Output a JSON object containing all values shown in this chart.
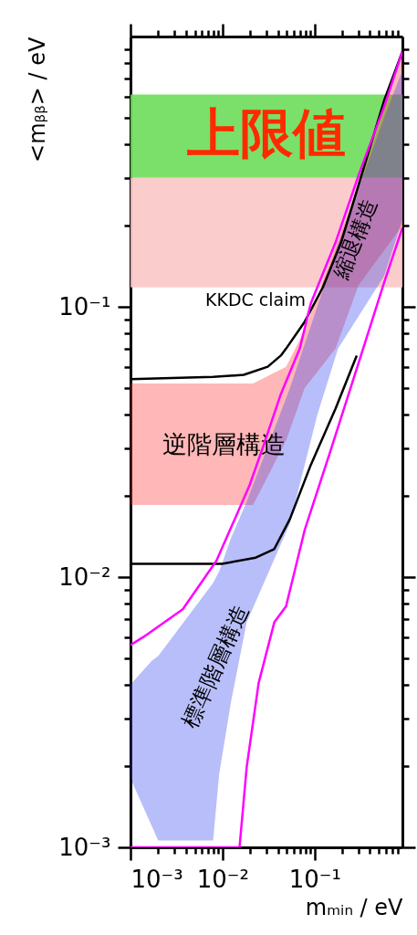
{
  "chart_data": {
    "type": "line",
    "xlabel": "mₘᵢₙ / eV",
    "ylabel": "<mᵦᵦ> / eV",
    "log": "xy",
    "grid": false,
    "xlim": [
      0.001,
      0.9
    ],
    "ylim": [
      0.001,
      1
    ],
    "xticks": [
      {
        "value": 0.001,
        "label": "10⁻³"
      },
      {
        "value": 0.002,
        "label": null
      },
      {
        "value": 0.003,
        "label": null
      },
      {
        "value": 0.004,
        "label": null
      },
      {
        "value": 0.005,
        "label": null
      },
      {
        "value": 0.006,
        "label": null
      },
      {
        "value": 0.007,
        "label": null
      },
      {
        "value": 0.008,
        "label": null
      },
      {
        "value": 0.009,
        "label": null
      },
      {
        "value": 0.01,
        "label": "10⁻²"
      },
      {
        "value": 0.02,
        "label": null
      },
      {
        "value": 0.03,
        "label": null
      },
      {
        "value": 0.04,
        "label": null
      },
      {
        "value": 0.05,
        "label": null
      },
      {
        "value": 0.06,
        "label": null
      },
      {
        "value": 0.07,
        "label": null
      },
      {
        "value": 0.08,
        "label": null
      },
      {
        "value": 0.09,
        "label": null
      },
      {
        "value": 0.1,
        "label": "10⁻¹"
      },
      {
        "value": 0.2,
        "label": null
      },
      {
        "value": 0.3,
        "label": null
      },
      {
        "value": 0.4,
        "label": null
      },
      {
        "value": 0.5,
        "label": null
      },
      {
        "value": 0.6,
        "label": null
      },
      {
        "value": 0.7,
        "label": null
      },
      {
        "value": 0.8,
        "label": null
      }
    ],
    "yticks": [
      {
        "value": 0.001,
        "label": "10⁻³"
      },
      {
        "value": 0.002,
        "label": null
      },
      {
        "value": 0.003,
        "label": null
      },
      {
        "value": 0.004,
        "label": null
      },
      {
        "value": 0.005,
        "label": null
      },
      {
        "value": 0.006,
        "label": null
      },
      {
        "value": 0.007,
        "label": null
      },
      {
        "value": 0.008,
        "label": null
      },
      {
        "value": 0.009,
        "label": null
      },
      {
        "value": 0.01,
        "label": "10⁻²"
      },
      {
        "value": 0.02,
        "label": null
      },
      {
        "value": 0.03,
        "label": null
      },
      {
        "value": 0.04,
        "label": null
      },
      {
        "value": 0.05,
        "label": null
      },
      {
        "value": 0.06,
        "label": null
      },
      {
        "value": 0.07,
        "label": null
      },
      {
        "value": 0.08,
        "label": null
      },
      {
        "value": 0.09,
        "label": null
      },
      {
        "value": 0.1,
        "label": "10⁻¹"
      },
      {
        "value": 0.2,
        "label": null
      },
      {
        "value": 0.3,
        "label": null
      },
      {
        "value": 0.4,
        "label": null
      },
      {
        "value": 0.5,
        "label": null
      },
      {
        "value": 0.6,
        "label": null
      },
      {
        "value": 0.7,
        "label": null
      },
      {
        "value": 0.8,
        "label": null
      },
      {
        "value": 0.9,
        "label": null
      }
    ],
    "bands": [
      {
        "axis": "y",
        "from": 0.3,
        "to": 0.61,
        "color": "#6ddd5a",
        "label": "上限値"
      },
      {
        "axis": "y",
        "from": 0.118,
        "to": 0.3,
        "color": "#f9c6c6",
        "label": "KKDC claim"
      }
    ],
    "series": [
      {
        "type": "area",
        "color": "#ff3030",
        "x": [
          0.001,
          0.0215,
          0.049,
          0.078,
          0.169,
          0.3,
          0.9
        ],
        "values": [
          null,
          null,
          null,
          null,
          null,
          null,
          null
        ],
        "upper": [
          0.052,
          0.052,
          0.06,
          0.082,
          0.165,
          0.28,
          0.85
        ],
        "lower": [
          0.0185,
          0.0185,
          0.032,
          0.05,
          0.07,
          0.12,
          0.2
        ]
      },
      {
        "type": "area",
        "color": "#3344ee",
        "x": [
          0.001,
          0.0017,
          0.002,
          0.0079,
          0.0092,
          0.0124,
          0.0183,
          0.054,
          0.107,
          0.18,
          0.57,
          0.9
        ],
        "values": [
          null,
          null,
          null,
          null,
          null,
          null,
          null,
          null,
          null,
          null,
          null,
          null
        ],
        "upper": [
          0.004,
          0.0049,
          0.0051,
          0.0095,
          0.0105,
          0.014,
          0.019,
          0.05,
          0.1,
          0.17,
          0.5,
          0.75
        ],
        "lower": [
          0.0018,
          0.0012,
          0.00106,
          0.00106,
          0.00187,
          0.00347,
          0.0068,
          0.0158,
          0.0398,
          0.07,
          0.13,
          0.21
        ]
      },
      {
        "type": "line",
        "color": "#000000",
        "x": [
          0.001,
          0.0079,
          0.017,
          0.031,
          0.043,
          0.049,
          0.078,
          0.123,
          0.194,
          0.287,
          0.57,
          0.9
        ],
        "values": [
          0.054,
          0.055,
          0.056,
          0.06,
          0.066,
          0.07,
          0.088,
          0.118,
          0.173,
          0.268,
          0.58,
          0.88
        ]
      },
      {
        "type": "line",
        "color": "#000000",
        "x": [
          0.001,
          0.0099,
          0.023,
          0.0365,
          0.054,
          0.091,
          0.169,
          0.287
        ],
        "values": [
          0.0112,
          0.0112,
          0.0118,
          0.0127,
          0.0164,
          0.026,
          0.042,
          0.066
        ]
      },
      {
        "type": "line",
        "color": "#ff00ff",
        "x": [
          0.001,
          0.00138,
          0.0037,
          0.0086,
          0.0136,
          0.0197,
          0.0271,
          0.043,
          0.069,
          0.091,
          0.169,
          0.307,
          0.57,
          0.9
        ],
        "values": [
          0.0056,
          0.006,
          0.0076,
          0.0115,
          0.0164,
          0.0219,
          0.0298,
          0.0475,
          0.07,
          0.103,
          0.173,
          0.313,
          0.55,
          0.88
        ]
      },
      {
        "type": "line",
        "color": "#ff00ff",
        "x": [
          0.001,
          0.0153,
          0.0183,
          0.0247,
          0.0365,
          0.049,
          0.078,
          0.144,
          0.337,
          0.57,
          0.9
        ],
        "values": [
          0.001,
          0.001,
          0.00198,
          0.00406,
          0.0068,
          0.0078,
          0.0149,
          0.0283,
          0.07,
          0.123,
          0.196
        ]
      }
    ],
    "annotations": [
      "逆階層構造",
      "縮退構造",
      "標準階層構造"
    ]
  }
}
